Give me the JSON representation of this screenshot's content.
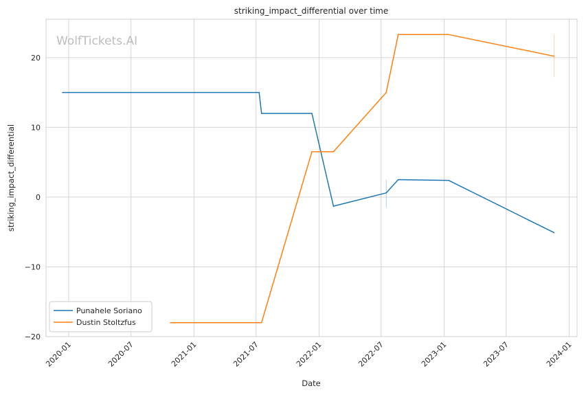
{
  "chart_data": {
    "type": "line",
    "title": "striking_impact_differential over time",
    "xlabel": "Date",
    "ylabel": "striking_impact_differential",
    "watermark": "WolfTickets.AI",
    "xlim": [
      "2019-10-27",
      "2024-01-24"
    ],
    "ylim": [
      -20,
      25.5
    ],
    "x_ticks": [
      "2020-01",
      "2020-07",
      "2021-01",
      "2021-07",
      "2022-01",
      "2022-07",
      "2023-01",
      "2023-07",
      "2024-01"
    ],
    "y_ticks": [
      -20,
      -10,
      0,
      10,
      20
    ],
    "y_tick_labels": [
      "−20",
      "−10",
      "0",
      "10",
      "20"
    ],
    "grid": true,
    "legend_position": "lower-left",
    "series": [
      {
        "name": "Punahele Soriano",
        "color": "#1f77b4",
        "points": [
          {
            "x": "2019-12-14",
            "y": 15
          },
          {
            "x": "2021-07-10",
            "y": 15
          },
          {
            "x": "2021-07-17",
            "y": 12
          },
          {
            "x": "2021-12-11",
            "y": 12
          },
          {
            "x": "2022-02-12",
            "y": -1.3
          },
          {
            "x": "2022-07-16",
            "y": 0.6
          },
          {
            "x": "2022-08-20",
            "y": 2.5
          },
          {
            "x": "2023-01-14",
            "y": 2.4
          },
          {
            "x": "2023-11-18",
            "y": -5.1
          }
        ],
        "error_bars": [
          {
            "x": "2022-07-16",
            "low": -1.5,
            "high": 2.5
          }
        ]
      },
      {
        "name": "Dustin Stoltzfus",
        "color": "#ff7f0e",
        "points": [
          {
            "x": "2020-10-24",
            "y": -18
          },
          {
            "x": "2021-07-17",
            "y": -18
          },
          {
            "x": "2021-12-11",
            "y": 6.5
          },
          {
            "x": "2022-02-12",
            "y": 6.5
          },
          {
            "x": "2022-07-16",
            "y": 15
          },
          {
            "x": "2022-08-20",
            "y": 23.3
          },
          {
            "x": "2023-01-14",
            "y": 23.3
          },
          {
            "x": "2023-11-18",
            "y": 20.2
          }
        ],
        "error_bars": [
          {
            "x": "2023-11-18",
            "low": 17.2,
            "high": 23.3
          }
        ]
      }
    ]
  }
}
